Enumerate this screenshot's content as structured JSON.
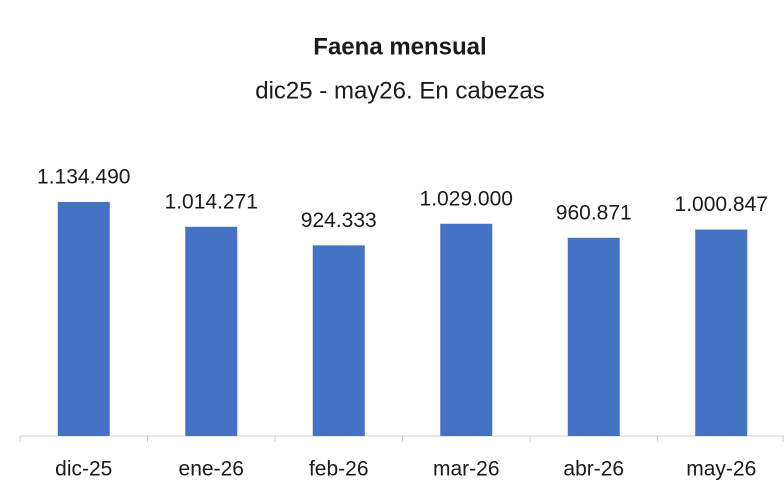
{
  "chart_data": {
    "type": "bar",
    "title": "Faena mensual",
    "subtitle": "dic25 - may26. En cabezas",
    "categories": [
      "dic-25",
      "ene-26",
      "feb-26",
      "mar-26",
      "abr-26",
      "may-26"
    ],
    "values": [
      1134490,
      1014271,
      924333,
      1029000,
      960871,
      1000847
    ],
    "value_labels": [
      "1.134.490",
      "1.014.271",
      "924.333",
      "1.029.000",
      "960.871",
      "1.000.847"
    ],
    "color": "#4472c4"
  }
}
